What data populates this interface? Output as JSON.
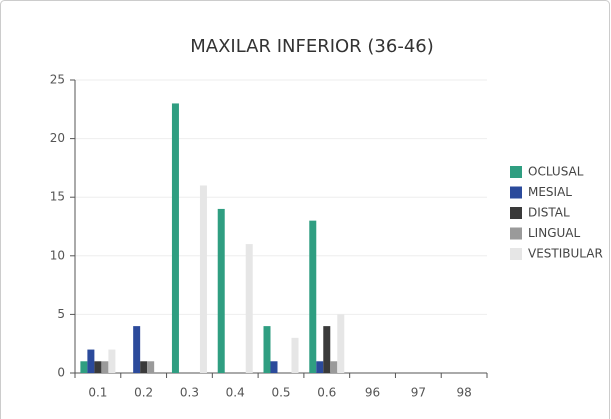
{
  "chart_data": {
    "type": "bar",
    "title": "MAXILAR INFERIOR (36-46)",
    "categories": [
      "0.1",
      "0.2",
      "0.3",
      "0.4",
      "0.5",
      "0.6",
      "96",
      "97",
      "98"
    ],
    "series": [
      {
        "name": "OCLUSAL",
        "color": "#2f9e81",
        "values": [
          1,
          0,
          23,
          14,
          4,
          13,
          0,
          0,
          0
        ]
      },
      {
        "name": "MESIAL",
        "color": "#2b4a9b",
        "values": [
          2,
          4,
          0,
          0,
          1,
          1,
          0,
          0,
          0
        ]
      },
      {
        "name": "DISTAL",
        "color": "#3a3a3a",
        "values": [
          1,
          1,
          0,
          0,
          0,
          4,
          0,
          0,
          0
        ]
      },
      {
        "name": "LINGUAL",
        "color": "#9a9a9a",
        "values": [
          1,
          1,
          0,
          0,
          0,
          1,
          0,
          0,
          0
        ]
      },
      {
        "name": "VESTIBULAR",
        "color": "#e6e6e6",
        "values": [
          2,
          0,
          16,
          11,
          3,
          5,
          0,
          0,
          0
        ]
      }
    ],
    "ylim": [
      0,
      25
    ],
    "yticks": [
      0,
      5,
      10,
      15,
      20,
      25
    ],
    "grid": true,
    "legend": "right"
  }
}
